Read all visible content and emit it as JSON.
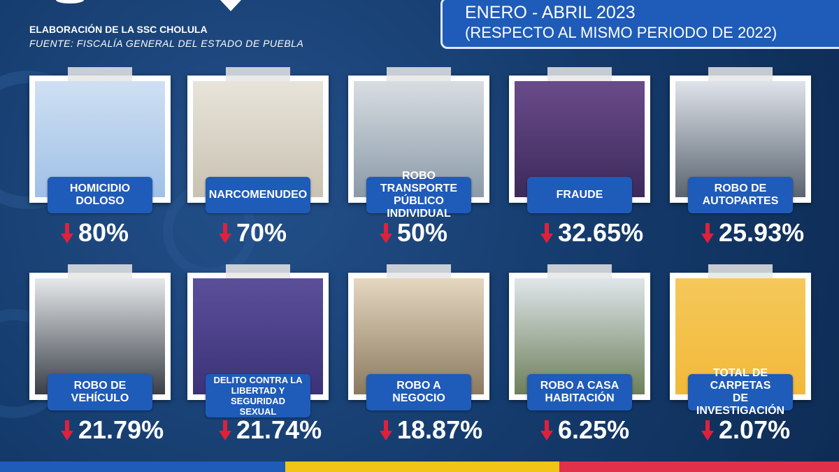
{
  "header": {
    "credit": "ELABORACIÓN DE LA SSC CHOLULA",
    "source": "FUENTE: FISCALÍA GENERAL DEL ESTADO DE PUEBLA",
    "period": "ENERO - ABRIL 2023",
    "comparison": "(RESPECTO AL MISMO PERIODO DE 2022)"
  },
  "cards": [
    {
      "label": [
        "HOMICIDIO",
        "DOLOSO"
      ],
      "value": "80%"
    },
    {
      "label": [
        "NARCOMENUDEO"
      ],
      "value": "70%"
    },
    {
      "label": [
        "ROBO TRANSPORTE",
        "PÚBLICO INDIVIDUAL"
      ],
      "value": "50%"
    },
    {
      "label": [
        "FRAUDE"
      ],
      "value": "32.65%"
    },
    {
      "label": [
        "ROBO DE",
        "AUTOPARTES"
      ],
      "value": "25.93%"
    },
    {
      "label": [
        "ROBO DE",
        "VEHÍCULO"
      ],
      "value": "21.79%"
    },
    {
      "label": [
        "DELITO CONTRA LA",
        "LIBERTAD Y SEGURIDAD",
        "SEXUAL"
      ],
      "value": "21.74%"
    },
    {
      "label": [
        "ROBO A",
        "NEGOCIO"
      ],
      "value": "18.87%"
    },
    {
      "label": [
        "ROBO A CASA",
        "HABITACIÓN"
      ],
      "value": "6.25%"
    },
    {
      "label": [
        "TOTAL DE CARPETAS",
        "DE INVESTIGACIÓN"
      ],
      "value": "2.07%"
    }
  ]
}
